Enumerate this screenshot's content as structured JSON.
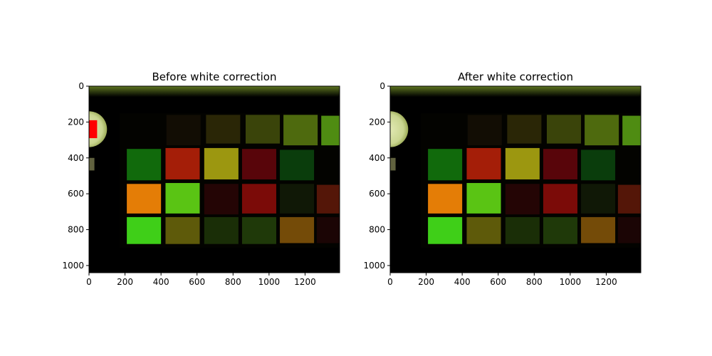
{
  "chart_data": [
    {
      "type": "image",
      "title": "Before white correction",
      "xlim": [
        0,
        1392
      ],
      "ylim": [
        1040,
        0
      ],
      "xticks": [
        0,
        200,
        400,
        600,
        800,
        1000,
        1200
      ],
      "yticks": [
        0,
        200,
        400,
        600,
        800,
        1000
      ],
      "xticklabels": [
        "0",
        "200",
        "400",
        "600",
        "800",
        "1000",
        "1200"
      ],
      "yticklabels": [
        "0",
        "200",
        "400",
        "600",
        "800",
        "1000"
      ],
      "grid": false,
      "white_reference_marker": {
        "x_range": [
          0,
          45
        ],
        "y_range": [
          190,
          290
        ],
        "color": "#ff0000"
      }
    },
    {
      "type": "image",
      "title": "After white correction",
      "xlim": [
        0,
        1392
      ],
      "ylim": [
        1040,
        0
      ],
      "xticks": [
        0,
        200,
        400,
        600,
        800,
        1000,
        1200
      ],
      "yticks": [
        0,
        200,
        400,
        600,
        800,
        1000
      ],
      "xticklabels": [
        "0",
        "200",
        "400",
        "600",
        "800",
        "1000",
        "1200"
      ],
      "yticklabels": [
        "0",
        "200",
        "400",
        "600",
        "800",
        "1000"
      ],
      "grid": false
    }
  ],
  "scene": {
    "patches": [
      {
        "x": [
          430,
          620
        ],
        "y": [
          160,
          330
        ],
        "color": "#120d04"
      },
      {
        "x": [
          650,
          840
        ],
        "y": [
          160,
          320
        ],
        "color": "#2a2606"
      },
      {
        "x": [
          870,
          1060
        ],
        "y": [
          160,
          320
        ],
        "color": "#3a440a"
      },
      {
        "x": [
          1080,
          1270
        ],
        "y": [
          160,
          330
        ],
        "color": "#4e6a0e"
      },
      {
        "x": [
          1290,
          1392
        ],
        "y": [
          165,
          330
        ],
        "color": "#4f8c12"
      },
      {
        "x": [
          210,
          400
        ],
        "y": [
          350,
          525
        ],
        "color": "#116a0c"
      },
      {
        "x": [
          425,
          615
        ],
        "y": [
          345,
          520
        ],
        "color": "#a41e08"
      },
      {
        "x": [
          640,
          830
        ],
        "y": [
          345,
          520
        ],
        "color": "#9c9710"
      },
      {
        "x": [
          850,
          1040
        ],
        "y": [
          350,
          520
        ],
        "color": "#58050a"
      },
      {
        "x": [
          1060,
          1250
        ],
        "y": [
          355,
          525
        ],
        "color": "#0a3d0c"
      },
      {
        "x": [
          210,
          400
        ],
        "y": [
          545,
          710
        ],
        "color": "#e47d06"
      },
      {
        "x": [
          425,
          615
        ],
        "y": [
          540,
          710
        ],
        "color": "#5ac414"
      },
      {
        "x": [
          640,
          830
        ],
        "y": [
          545,
          715
        ],
        "color": "#240505"
      },
      {
        "x": [
          850,
          1040
        ],
        "y": [
          545,
          710
        ],
        "color": "#7b0b08"
      },
      {
        "x": [
          1060,
          1250
        ],
        "y": [
          545,
          710
        ],
        "color": "#101806"
      },
      {
        "x": [
          1265,
          1392
        ],
        "y": [
          550,
          710
        ],
        "color": "#541608"
      },
      {
        "x": [
          210,
          400
        ],
        "y": [
          730,
          880
        ],
        "color": "#3fcf18"
      },
      {
        "x": [
          425,
          615
        ],
        "y": [
          730,
          880
        ],
        "color": "#5e5a0a"
      },
      {
        "x": [
          640,
          830
        ],
        "y": [
          730,
          880
        ],
        "color": "#1a2e07"
      },
      {
        "x": [
          850,
          1040
        ],
        "y": [
          730,
          880
        ],
        "color": "#1f3909"
      },
      {
        "x": [
          1060,
          1250
        ],
        "y": [
          730,
          875
        ],
        "color": "#744b08"
      },
      {
        "x": [
          1265,
          1392
        ],
        "y": [
          730,
          875
        ],
        "color": "#1b0505"
      }
    ],
    "white_target": {
      "cx": 0,
      "cy": 240,
      "r": 100,
      "color": "#c9d590"
    },
    "side_mark": {
      "x": [
        0,
        30
      ],
      "y": [
        400,
        470
      ],
      "color": "#8a8c5a"
    },
    "top_glow_color": "#6e8a24",
    "board_color": "#030300",
    "background_color": "#000000"
  }
}
